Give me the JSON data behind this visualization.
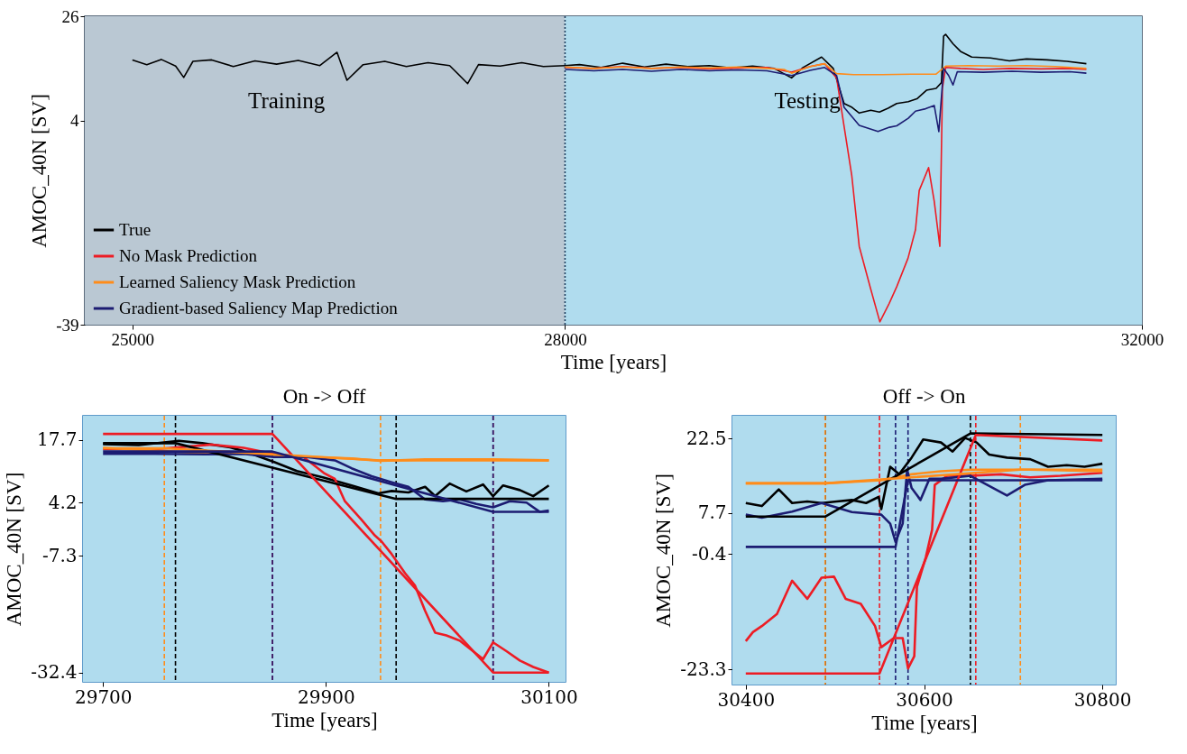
{
  "chart_data": [
    {
      "type": "line",
      "xlabel": "Time [years]",
      "ylabel": "AMOC_40N [SV]",
      "xlim": [
        24670,
        32000
      ],
      "ylim": [
        -39,
        26
      ],
      "xticks": [
        25000,
        28000,
        32000
      ],
      "yticks": [
        -39,
        4,
        26
      ],
      "legend": "bottom left",
      "bands": [
        {
          "axis": "x",
          "from": 24670,
          "to": 28000,
          "label": "Training",
          "color": "#bac8d3"
        },
        {
          "axis": "x",
          "from": 28000,
          "to": 32000,
          "label": "Testing",
          "color": "#b0dcee"
        }
      ],
      "ref_lines": [
        {
          "axis": "x",
          "value": 28000,
          "color": "#1f3f5f",
          "line_style": "dotted"
        }
      ],
      "series": [
        {
          "name": "True",
          "color": "#000000",
          "x": [
            25000,
            25100,
            25200,
            25300,
            25356,
            25420,
            25550,
            25700,
            25850,
            26000,
            26150,
            26300,
            26419,
            26488,
            26600,
            26750,
            26900,
            27050,
            27200,
            27325,
            27400,
            27550,
            27700,
            27850,
            28000,
            28100,
            28250,
            28400,
            28550,
            28700,
            28850,
            29000,
            29150,
            29300,
            29450,
            29571,
            29650,
            29779,
            29860,
            29935,
            29990,
            30040,
            30120,
            30180,
            30240,
            30300,
            30380,
            30440,
            30506,
            30573,
            30610,
            30625,
            30639,
            30690,
            30742,
            30820,
            30950,
            31081,
            31200,
            31342,
            31480,
            31615
          ],
          "values": [
            16.8,
            15.8,
            16.9,
            15.5,
            13.1,
            16.5,
            16.8,
            15.4,
            16.6,
            15.9,
            16.7,
            15.6,
            18.4,
            12.5,
            15.8,
            16.5,
            15.4,
            16.2,
            15.6,
            11.8,
            15.8,
            15.5,
            16.2,
            15.4,
            15.6,
            15.8,
            15.2,
            16.1,
            15.3,
            15.9,
            15.4,
            15.6,
            15.1,
            15.5,
            15.0,
            13.0,
            15.2,
            17.4,
            15.0,
            7.6,
            6.8,
            5.6,
            6.2,
            5.8,
            6.6,
            7.6,
            8.0,
            8.6,
            10.4,
            10.8,
            12.0,
            21.8,
            22.2,
            20.2,
            18.6,
            17.4,
            17.2,
            16.6,
            17.0,
            16.8,
            16.5,
            16.0
          ]
        },
        {
          "name": "No Mask Prediction",
          "color": "#ed1c24",
          "x": [
            28000,
            28200,
            28400,
            28600,
            28800,
            29000,
            29200,
            29400,
            29571,
            29700,
            29800,
            29883,
            29935,
            29988,
            30040,
            30117,
            30183,
            30248,
            30300,
            30378,
            30430,
            30456,
            30521,
            30560,
            30599,
            30617,
            30639,
            30742,
            30900,
            31081,
            31300,
            31500,
            31615
          ],
          "values": [
            15.2,
            15.0,
            15.4,
            15.0,
            15.2,
            14.9,
            15.1,
            15.2,
            14.2,
            15.4,
            16.0,
            13.0,
            2.8,
            -7.5,
            -22.5,
            -31.2,
            -38.4,
            -34.5,
            -31.0,
            -25.0,
            -19.0,
            -10.7,
            -5.9,
            -13.0,
            -22.5,
            10.8,
            15.2,
            15.0,
            14.8,
            15.0,
            14.9,
            15.0,
            14.8
          ]
        },
        {
          "name": "Learned Saliency Mask Prediction",
          "color": "#ff8c1a",
          "x": [
            28000,
            28200,
            28400,
            28600,
            28800,
            29000,
            29200,
            29400,
            29519,
            29571,
            29700,
            29800,
            29883,
            30000,
            30200,
            30400,
            30573,
            30640,
            30800,
            31000,
            31200,
            31400,
            31615
          ],
          "values": [
            15.3,
            15.0,
            15.3,
            15.0,
            15.3,
            15.1,
            15.3,
            15.0,
            14.8,
            14.0,
            15.4,
            16.0,
            13.9,
            13.7,
            13.7,
            13.8,
            13.8,
            15.5,
            15.6,
            15.5,
            15.6,
            15.4,
            15.0
          ]
        },
        {
          "name": "Gradient-based Saliency Map Prediction",
          "color": "#1c1c72",
          "x": [
            28000,
            28200,
            28400,
            28600,
            28800,
            29000,
            29200,
            29400,
            29571,
            29700,
            29800,
            29883,
            29935,
            30040,
            30170,
            30250,
            30300,
            30380,
            30430,
            30500,
            30560,
            30592,
            30625,
            30660,
            30690,
            30720,
            30900,
            31100,
            31300,
            31500,
            31615
          ],
          "values": [
            14.8,
            14.5,
            14.8,
            14.4,
            14.8,
            14.5,
            14.7,
            14.5,
            13.5,
            14.6,
            15.2,
            13.5,
            6.8,
            3.0,
            1.7,
            2.6,
            2.9,
            4.5,
            6.0,
            6.5,
            7.2,
            1.7,
            15.0,
            13.5,
            11.5,
            14.3,
            14.2,
            14.4,
            14.2,
            14.3,
            14.0
          ]
        }
      ]
    },
    {
      "type": "line",
      "title": "On -> Off",
      "xlabel": "Time [years]",
      "ylabel": "AMOC_40N [SV]",
      "xlim": [
        29682,
        30115
      ],
      "ylim": [
        -34.4,
        22.9
      ],
      "xticks": [
        29700,
        29900,
        30100
      ],
      "yticks": [
        -32.4,
        -7.3,
        4.2,
        17.7
      ],
      "bands": [
        {
          "axis": "x",
          "from": 29682,
          "to": 30115,
          "color": "#b0dcee"
        }
      ],
      "ref_lines": [
        {
          "axis": "x",
          "value": 29755,
          "color": "#ff8c1a",
          "line_style": "dashed"
        },
        {
          "axis": "x",
          "value": 29765,
          "color": "#000000",
          "line_style": "dashed"
        },
        {
          "axis": "x",
          "value": 29852,
          "color": "#ed1c24",
          "line_style": "dashed"
        },
        {
          "axis": "x",
          "value": 29852,
          "color": "#1c1c72",
          "line_style": "dashed"
        },
        {
          "axis": "x",
          "value": 29949,
          "color": "#ff8c1a",
          "line_style": "dashed"
        },
        {
          "axis": "x",
          "value": 29963,
          "color": "#000000",
          "line_style": "dashed"
        },
        {
          "axis": "x",
          "value": 30050,
          "color": "#ed1c24",
          "line_style": "dashed"
        },
        {
          "axis": "x",
          "value": 30050,
          "color": "#1c1c72",
          "line_style": "dashed"
        }
      ],
      "series": [
        {
          "color": "#000000",
          "x": [
            29700,
            29732,
            29768,
            29789,
            29814,
            29826,
            29853,
            29874,
            29898,
            29923,
            29947,
            29959,
            29974,
            29989,
            29998,
            30011,
            30026,
            30041,
            30050,
            30059,
            30074,
            30086,
            30100
          ],
          "values": [
            16.8,
            16.6,
            17.5,
            17.0,
            16.1,
            15.3,
            13.0,
            11.0,
            9.6,
            7.9,
            6.2,
            6.7,
            6.4,
            7.6,
            5.6,
            8.3,
            6.6,
            8.1,
            5.6,
            7.9,
            6.9,
            5.6,
            7.9
          ]
        },
        {
          "color": "#ed1c24",
          "x": [
            29700,
            29747,
            29798,
            29826,
            29853,
            29880,
            29898,
            29908,
            29917,
            29932,
            29944,
            29950,
            29959,
            29971,
            29980,
            29989,
            29998,
            30008,
            30020,
            30032,
            30041,
            30050,
            30062,
            30074,
            30086,
            30100
          ],
          "values": [
            15.7,
            15.7,
            16.7,
            16.0,
            14.7,
            14.0,
            10.6,
            9.3,
            4.5,
            0.5,
            -2.9,
            -4.2,
            -6.9,
            -11.0,
            -13.7,
            -19.1,
            -23.8,
            -24.4,
            -25.5,
            -27.8,
            -29.5,
            -25.9,
            -27.8,
            -29.8,
            -31.2,
            -32.4
          ]
        },
        {
          "color": "#ff8c1a",
          "x": [
            29700,
            29777,
            29838,
            29886,
            29923,
            29949,
            29989,
            30050,
            30100
          ],
          "values": [
            16.0,
            15.0,
            14.7,
            14.0,
            13.7,
            13.2,
            13.5,
            13.5,
            13.3
          ]
        },
        {
          "color": "#1c1c72",
          "x": [
            29700,
            29747,
            29792,
            29826,
            29853,
            29883,
            29908,
            29923,
            29941,
            29959,
            29974,
            29989,
            30005,
            30020,
            30035,
            30050,
            30065,
            30080,
            30092,
            30100
          ],
          "values": [
            14.7,
            14.7,
            14.6,
            14.7,
            14.0,
            14.0,
            13.3,
            11.6,
            9.9,
            8.6,
            7.6,
            4.9,
            4.5,
            4.9,
            3.9,
            3.2,
            4.5,
            4.2,
            2.2,
            2.5
          ]
        },
        {
          "type": "line",
          "color": "#000000",
          "x": [
            29700,
            29765,
            29963,
            30100
          ],
          "values": [
            17.0,
            17.0,
            5.0,
            5.0
          ]
        },
        {
          "type": "line",
          "color": "#ed1c24",
          "x": [
            29700,
            29852,
            30050,
            30100
          ],
          "values": [
            19.0,
            19.0,
            -32.4,
            -32.4
          ]
        },
        {
          "type": "line",
          "color": "#ff8c1a",
          "x": [
            29700,
            29755,
            29949,
            30100
          ],
          "values": [
            15.9,
            15.9,
            13.3,
            13.3
          ]
        },
        {
          "type": "line",
          "color": "#1c1c72",
          "x": [
            29700,
            29852,
            30050,
            30100
          ],
          "values": [
            15.2,
            15.2,
            2.2,
            2.2
          ]
        }
      ]
    },
    {
      "type": "line",
      "title": "Off -> On",
      "xlabel": "Time [years]",
      "ylabel": "AMOC_40N [SV]",
      "xlim": [
        30385,
        30815
      ],
      "ylim": [
        -26.3,
        27
      ],
      "xticks": [
        30400,
        30600,
        30800
      ],
      "yticks": [
        -23.3,
        -0.4,
        7.7,
        22.5
      ],
      "bands": [
        {
          "axis": "x",
          "from": 30385,
          "to": 30815,
          "color": "#b0dcee"
        }
      ],
      "ref_lines": [
        {
          "axis": "x",
          "value": 30489,
          "color": "#000000",
          "line_style": "dashed"
        },
        {
          "axis": "x",
          "value": 30489,
          "color": "#ff8c1a",
          "line_style": "dashed"
        },
        {
          "axis": "x",
          "value": 30550,
          "color": "#ed1c24",
          "line_style": "dashed"
        },
        {
          "axis": "x",
          "value": 30568,
          "color": "#1c1c72",
          "line_style": "dashed"
        },
        {
          "axis": "x",
          "value": 30582,
          "color": "#1c1c72",
          "line_style": "dashed"
        },
        {
          "axis": "x",
          "value": 30652,
          "color": "#000000",
          "line_style": "dashed"
        },
        {
          "axis": "x",
          "value": 30658,
          "color": "#ed1c24",
          "line_style": "dashed"
        },
        {
          "axis": "x",
          "value": 30708,
          "color": "#ff8c1a",
          "line_style": "dashed"
        }
      ],
      "series": [
        {
          "color": "#000000",
          "x": [
            30400,
            30418,
            30437,
            30452,
            30469,
            30485,
            30502,
            30519,
            30535,
            30549,
            30552,
            30562,
            30572,
            30586,
            30599,
            30619,
            30632,
            30646,
            30659,
            30673,
            30693,
            30719,
            30739,
            30760,
            30780,
            30800
          ],
          "values": [
            9.7,
            9.1,
            12.4,
            9.7,
            10.0,
            9.7,
            10.0,
            10.3,
            9.7,
            10.9,
            8.5,
            16.9,
            15.4,
            18.7,
            22.3,
            21.7,
            19.9,
            22.6,
            21.7,
            19.3,
            18.7,
            18.4,
            16.9,
            17.2,
            16.9,
            17.5
          ]
        },
        {
          "color": "#ed1c24",
          "x": [
            30400,
            30408,
            30418,
            30435,
            30452,
            30469,
            30485,
            30499,
            30512,
            30529,
            30545,
            30552,
            30566,
            30576,
            30582,
            30589,
            30592,
            30602,
            30609,
            30612,
            30626,
            30652,
            30686,
            30719,
            30753,
            30800
          ],
          "values": [
            -17.7,
            -15.9,
            -14.7,
            -12.3,
            -5.7,
            -9.3,
            -5.1,
            -4.9,
            -9.3,
            -10.3,
            -14.7,
            -18.9,
            -17.1,
            -17.1,
            -23.1,
            -20.7,
            -6.9,
            -1.0,
            4.4,
            13.3,
            15.1,
            15.1,
            15.4,
            14.8,
            15.1,
            15.7
          ]
        },
        {
          "color": "#ff8c1a",
          "x": [
            30400,
            30489,
            30552,
            30586,
            30619,
            30652,
            30719,
            30800
          ],
          "values": [
            13.6,
            13.6,
            14.2,
            15.4,
            16.0,
            16.3,
            16.3,
            16.0
          ]
        },
        {
          "color": "#1c1c72",
          "x": [
            30400,
            30418,
            30452,
            30485,
            30519,
            30552,
            30562,
            30568,
            30576,
            30581,
            30586,
            30596,
            30606,
            30619,
            30652,
            30693,
            30713,
            30739,
            30800
          ],
          "values": [
            7.4,
            6.8,
            8.0,
            9.7,
            7.9,
            7.4,
            5.6,
            2.0,
            5.6,
            16.3,
            12.7,
            10.3,
            14.5,
            14.5,
            15.1,
            11.2,
            13.3,
            14.2,
            14.5
          ]
        },
        {
          "type": "line",
          "color": "#000000",
          "x": [
            30400,
            30489,
            30652,
            30800
          ],
          "values": [
            7.0,
            7.0,
            23.5,
            23.2
          ]
        },
        {
          "type": "line",
          "color": "#ed1c24",
          "x": [
            30400,
            30550,
            30658,
            30800
          ],
          "values": [
            -24.1,
            -24.1,
            23.2,
            22.1
          ]
        },
        {
          "type": "line",
          "color": "#ff8c1a",
          "x": [
            30400,
            30489,
            30708,
            30800
          ],
          "values": [
            13.6,
            13.6,
            16.3,
            16.3
          ]
        },
        {
          "type": "line",
          "color": "#1c1c72",
          "x": [
            30400,
            30568,
            30582,
            30800
          ],
          "values": [
            1.0,
            1.0,
            14.2,
            14.2
          ]
        }
      ]
    }
  ]
}
